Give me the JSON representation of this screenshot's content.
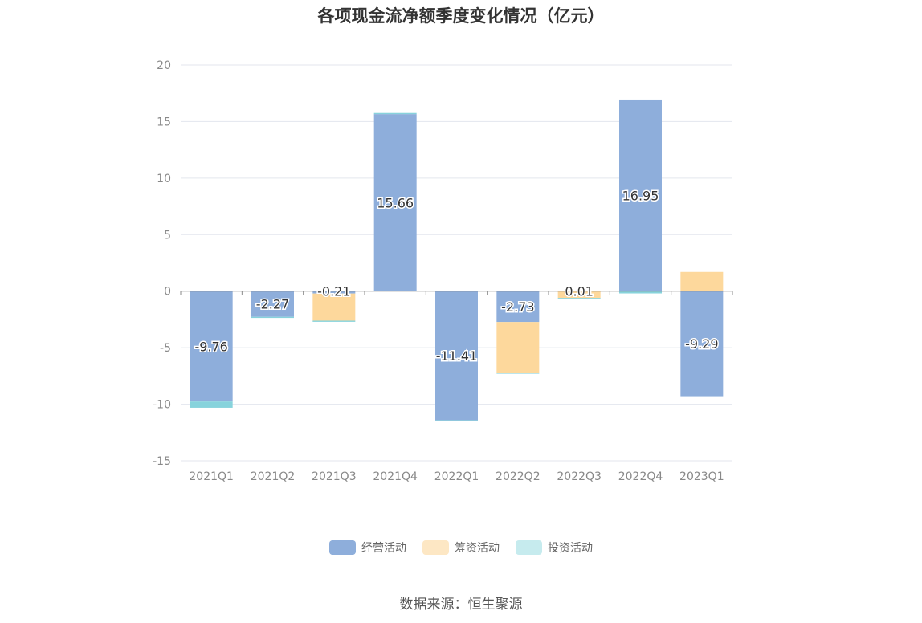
{
  "chart_data": {
    "type": "bar",
    "stacked": true,
    "title": "各项现金流净额季度变化情况（亿元）",
    "categories": [
      "2021Q1",
      "2021Q2",
      "2021Q3",
      "2021Q4",
      "2022Q1",
      "2022Q2",
      "2022Q3",
      "2022Q4",
      "2023Q1"
    ],
    "series": [
      {
        "name": "经营活动",
        "color": "#8eaedb",
        "values": [
          -9.76,
          -2.27,
          -0.21,
          15.66,
          -11.41,
          -2.73,
          0.01,
          16.95,
          -9.29
        ],
        "labels": [
          "-9.76",
          "-2.27",
          "-0.21",
          "15.66",
          "-11.41",
          "-2.73",
          "0.01",
          "16.95",
          "-9.29"
        ]
      },
      {
        "name": "筹资活动",
        "color": "#fdd89c",
        "values": [
          0,
          0,
          -2.4,
          0,
          0,
          -4.5,
          -0.6,
          0,
          1.7
        ]
      },
      {
        "name": "投资活动",
        "color": "#87d3dc",
        "values": [
          -0.55,
          -0.1,
          -0.1,
          0.1,
          -0.1,
          -0.05,
          -0.05,
          -0.2,
          0
        ]
      }
    ],
    "ylim": [
      -15,
      20
    ],
    "yticks": [
      "20",
      "15",
      "10",
      "5",
      "0",
      "-5",
      "-10",
      "-15"
    ],
    "grid": true,
    "legend_position": "bottom",
    "legend_colors": [
      "#8eaedb",
      "#fde7c4",
      "#c6ebee"
    ]
  },
  "source_note": "数据来源：恒生聚源"
}
